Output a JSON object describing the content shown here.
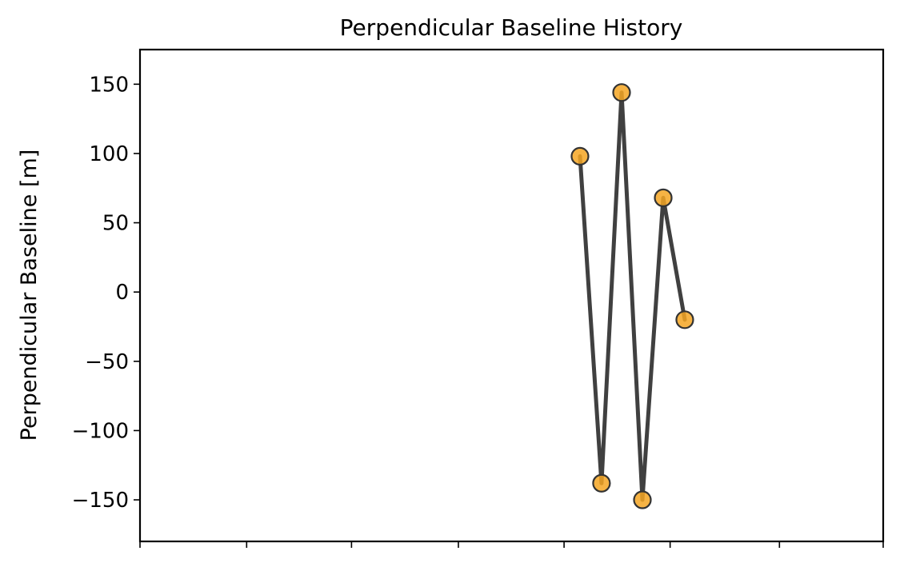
{
  "chart_data": {
    "type": "line",
    "title": "Perpendicular Baseline History",
    "xlabel": "",
    "ylabel": "Perpendicular Baseline [m]",
    "ylim": [
      -180,
      175
    ],
    "xlim": [
      0,
      1
    ],
    "y_ticks": [
      150,
      100,
      50,
      0,
      -50,
      -100,
      -150
    ],
    "y_tick_labels": [
      "150",
      "100",
      "50",
      "0",
      "−50",
      "−100",
      "−150"
    ],
    "x_ticks": [
      0,
      0.1435,
      0.2846,
      0.4284,
      0.5706,
      0.7133,
      0.8604,
      1.0
    ],
    "x_tick_labels": [
      "",
      "",
      "",
      "",
      "",
      "",
      "",
      ""
    ],
    "grid": false,
    "series": [
      {
        "x": [
          0.592,
          0.621,
          0.648,
          0.676,
          0.704,
          0.733
        ],
        "values": [
          98,
          -138,
          144,
          -150,
          68,
          -20
        ]
      }
    ],
    "colors": {
      "line": "#404040",
      "marker_fill": "#f5a623",
      "marker_edge": "#333333"
    }
  }
}
